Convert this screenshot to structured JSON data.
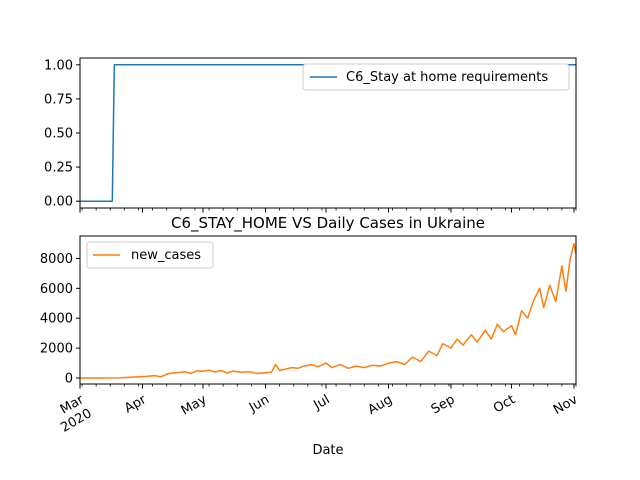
{
  "chart_data": [
    {
      "type": "line",
      "title": "",
      "ylim": [
        -0.05,
        1.05
      ],
      "yticks": [
        0.0,
        0.25,
        0.5,
        0.75,
        1.0
      ],
      "ytick_labels": [
        "0.00",
        "0.25",
        "0.50",
        "0.75",
        "1.00"
      ],
      "legend": "top-right",
      "series": [
        {
          "name": "C6_Stay at home requirements",
          "color": "#1f77b4",
          "points": [
            [
              "2020-03-01",
              0
            ],
            [
              "2020-03-17",
              0
            ],
            [
              "2020-03-18",
              1
            ],
            [
              "2020-11-02",
              1
            ]
          ]
        }
      ]
    },
    {
      "type": "line",
      "title": "C6_STAY_HOME VS Daily Cases in Ukraine",
      "xlabel": "Date",
      "ylim": [
        -400,
        9500
      ],
      "yticks": [
        0,
        2000,
        4000,
        6000,
        8000
      ],
      "ytick_labels": [
        "0",
        "2000",
        "4000",
        "6000",
        "8000"
      ],
      "legend": "top-left",
      "xticks": [
        {
          "date": "2020-03-01",
          "label": "Mar",
          "sublabel": "2020"
        },
        {
          "date": "2020-04-01",
          "label": "Apr"
        },
        {
          "date": "2020-05-01",
          "label": "May"
        },
        {
          "date": "2020-06-01",
          "label": "Jun"
        },
        {
          "date": "2020-07-01",
          "label": "Jul"
        },
        {
          "date": "2020-08-01",
          "label": "Aug"
        },
        {
          "date": "2020-09-01",
          "label": "Sep"
        },
        {
          "date": "2020-10-01",
          "label": "Oct"
        },
        {
          "date": "2020-11-01",
          "label": "Nov"
        }
      ],
      "series": [
        {
          "name": "new_cases",
          "color": "#ff7f0e",
          "points": [
            [
              "2020-03-01",
              0
            ],
            [
              "2020-03-10",
              0
            ],
            [
              "2020-03-20",
              10
            ],
            [
              "2020-03-25",
              40
            ],
            [
              "2020-03-30",
              90
            ],
            [
              "2020-04-03",
              110
            ],
            [
              "2020-04-07",
              160
            ],
            [
              "2020-04-10",
              80
            ],
            [
              "2020-04-14",
              300
            ],
            [
              "2020-04-18",
              360
            ],
            [
              "2020-04-22",
              420
            ],
            [
              "2020-04-25",
              300
            ],
            [
              "2020-04-28",
              480
            ],
            [
              "2020-05-01",
              450
            ],
            [
              "2020-05-04",
              520
            ],
            [
              "2020-05-07",
              400
            ],
            [
              "2020-05-10",
              500
            ],
            [
              "2020-05-13",
              330
            ],
            [
              "2020-05-16",
              470
            ],
            [
              "2020-05-20",
              380
            ],
            [
              "2020-05-24",
              420
            ],
            [
              "2020-05-28",
              300
            ],
            [
              "2020-06-01",
              350
            ],
            [
              "2020-06-04",
              380
            ],
            [
              "2020-06-06",
              900
            ],
            [
              "2020-06-08",
              500
            ],
            [
              "2020-06-11",
              600
            ],
            [
              "2020-06-14",
              700
            ],
            [
              "2020-06-17",
              650
            ],
            [
              "2020-06-20",
              800
            ],
            [
              "2020-06-24",
              900
            ],
            [
              "2020-06-27",
              750
            ],
            [
              "2020-07-01",
              1000
            ],
            [
              "2020-07-04",
              700
            ],
            [
              "2020-07-08",
              900
            ],
            [
              "2020-07-12",
              650
            ],
            [
              "2020-07-16",
              800
            ],
            [
              "2020-07-20",
              700
            ],
            [
              "2020-07-24",
              850
            ],
            [
              "2020-07-28",
              800
            ],
            [
              "2020-08-01",
              1000
            ],
            [
              "2020-08-05",
              1100
            ],
            [
              "2020-08-09",
              900
            ],
            [
              "2020-08-13",
              1400
            ],
            [
              "2020-08-17",
              1100
            ],
            [
              "2020-08-21",
              1800
            ],
            [
              "2020-08-25",
              1500
            ],
            [
              "2020-08-28",
              2300
            ],
            [
              "2020-09-01",
              2000
            ],
            [
              "2020-09-04",
              2600
            ],
            [
              "2020-09-07",
              2200
            ],
            [
              "2020-09-11",
              2900
            ],
            [
              "2020-09-14",
              2400
            ],
            [
              "2020-09-18",
              3200
            ],
            [
              "2020-09-21",
              2600
            ],
            [
              "2020-09-24",
              3600
            ],
            [
              "2020-09-27",
              3100
            ],
            [
              "2020-10-01",
              3500
            ],
            [
              "2020-10-03",
              2900
            ],
            [
              "2020-10-06",
              4500
            ],
            [
              "2020-10-09",
              4000
            ],
            [
              "2020-10-12",
              5200
            ],
            [
              "2020-10-15",
              6000
            ],
            [
              "2020-10-17",
              4700
            ],
            [
              "2020-10-20",
              6200
            ],
            [
              "2020-10-23",
              5100
            ],
            [
              "2020-10-26",
              7500
            ],
            [
              "2020-10-28",
              5800
            ],
            [
              "2020-10-30",
              7900
            ],
            [
              "2020-11-01",
              9000
            ],
            [
              "2020-11-02",
              8300
            ]
          ]
        }
      ]
    }
  ]
}
